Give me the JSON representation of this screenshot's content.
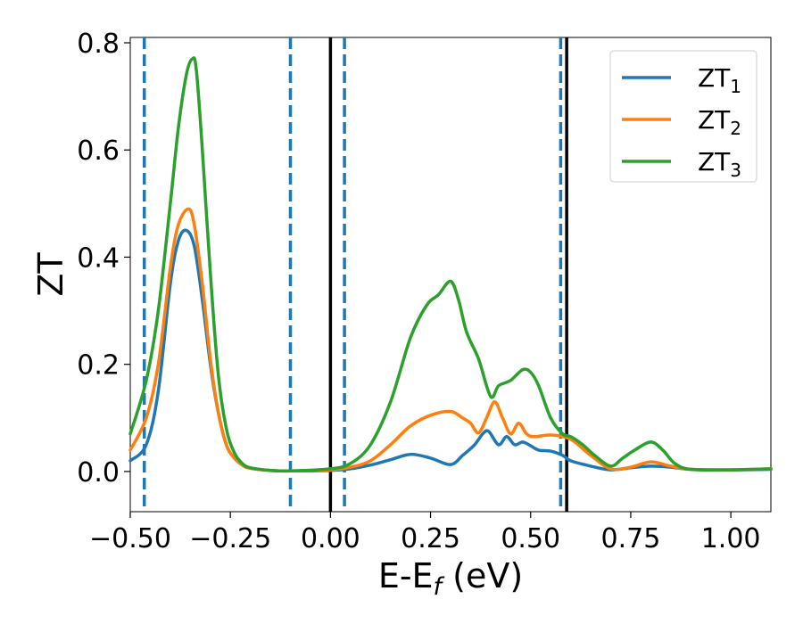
{
  "chart_data": {
    "type": "line",
    "xlabel": "E-E",
    "xlabel_sub": "f",
    "xlabel_unit": " (eV)",
    "ylabel": "ZT",
    "xlim": [
      -0.5,
      1.1
    ],
    "ylim": [
      -0.075,
      0.81
    ],
    "x_ticks": [
      -0.5,
      -0.25,
      0.0,
      0.25,
      0.5,
      0.75,
      1.0
    ],
    "x_tick_labels": [
      "−0.50",
      "−0.25",
      "0.00",
      "0.25",
      "0.50",
      "0.75",
      "1.00"
    ],
    "y_ticks": [
      0.0,
      0.2,
      0.4,
      0.6,
      0.8
    ],
    "y_tick_labels": [
      "0.0",
      "0.2",
      "0.4",
      "0.6",
      "0.8"
    ],
    "grid": false,
    "legend_position": "top-right",
    "solid_vlines": [
      0.0,
      0.59
    ],
    "dashed_vlines": [
      -0.465,
      -0.1,
      0.035,
      0.575
    ],
    "vline_colors": {
      "solid": "#000000",
      "dashed": "#1f77b4"
    },
    "series": [
      {
        "name": "ZT",
        "sub": "1",
        "color": "#1f77b4",
        "x": [
          -0.5,
          -0.46,
          -0.43,
          -0.4,
          -0.38,
          -0.36,
          -0.34,
          -0.32,
          -0.3,
          -0.28,
          -0.26,
          -0.24,
          -0.22,
          -0.2,
          -0.15,
          -0.1,
          0.0,
          0.05,
          0.1,
          0.15,
          0.2,
          0.25,
          0.3,
          0.33,
          0.36,
          0.38,
          0.395,
          0.42,
          0.44,
          0.46,
          0.48,
          0.5,
          0.52,
          0.55,
          0.58,
          0.6,
          0.65,
          0.7,
          0.75,
          0.8,
          0.85,
          0.9,
          1.0,
          1.1
        ],
        "y": [
          0.02,
          0.05,
          0.15,
          0.35,
          0.43,
          0.45,
          0.42,
          0.32,
          0.2,
          0.11,
          0.05,
          0.025,
          0.012,
          0.006,
          0.002,
          0.001,
          0.002,
          0.005,
          0.012,
          0.022,
          0.032,
          0.025,
          0.013,
          0.03,
          0.05,
          0.07,
          0.075,
          0.05,
          0.065,
          0.05,
          0.055,
          0.048,
          0.04,
          0.038,
          0.03,
          0.02,
          0.01,
          0.003,
          0.007,
          0.01,
          0.008,
          0.004,
          0.003,
          0.004
        ]
      },
      {
        "name": "ZT",
        "sub": "2",
        "color": "#ff7f0e",
        "x": [
          -0.5,
          -0.46,
          -0.43,
          -0.4,
          -0.38,
          -0.355,
          -0.34,
          -0.32,
          -0.3,
          -0.28,
          -0.26,
          -0.24,
          -0.22,
          -0.2,
          -0.15,
          -0.1,
          0.0,
          0.05,
          0.1,
          0.15,
          0.2,
          0.25,
          0.3,
          0.33,
          0.35,
          0.37,
          0.39,
          0.41,
          0.43,
          0.45,
          0.47,
          0.49,
          0.51,
          0.55,
          0.6,
          0.65,
          0.7,
          0.75,
          0.8,
          0.85,
          0.9,
          1.0,
          1.1
        ],
        "y": [
          0.04,
          0.1,
          0.2,
          0.38,
          0.46,
          0.49,
          0.46,
          0.35,
          0.21,
          0.11,
          0.05,
          0.025,
          0.012,
          0.006,
          0.002,
          0.001,
          0.003,
          0.008,
          0.02,
          0.05,
          0.085,
          0.105,
          0.112,
          0.1,
          0.09,
          0.072,
          0.1,
          0.13,
          0.1,
          0.07,
          0.09,
          0.07,
          0.065,
          0.068,
          0.06,
          0.03,
          0.005,
          0.008,
          0.018,
          0.01,
          0.004,
          0.003,
          0.005
        ]
      },
      {
        "name": "ZT",
        "sub": "3",
        "color": "#2ca02c",
        "x": [
          -0.5,
          -0.46,
          -0.43,
          -0.4,
          -0.38,
          -0.36,
          -0.345,
          -0.335,
          -0.32,
          -0.3,
          -0.28,
          -0.26,
          -0.24,
          -0.22,
          -0.2,
          -0.15,
          -0.1,
          0.0,
          0.05,
          0.1,
          0.15,
          0.2,
          0.24,
          0.27,
          0.3,
          0.32,
          0.34,
          0.37,
          0.4,
          0.42,
          0.45,
          0.48,
          0.5,
          0.52,
          0.55,
          0.58,
          0.6,
          0.63,
          0.66,
          0.7,
          0.73,
          0.76,
          0.8,
          0.83,
          0.86,
          0.9,
          1.0,
          1.1
        ],
        "y": [
          0.07,
          0.17,
          0.3,
          0.5,
          0.64,
          0.74,
          0.77,
          0.75,
          0.6,
          0.37,
          0.18,
          0.08,
          0.035,
          0.015,
          0.007,
          0.002,
          0.001,
          0.005,
          0.015,
          0.05,
          0.13,
          0.25,
          0.31,
          0.33,
          0.355,
          0.32,
          0.26,
          0.21,
          0.14,
          0.16,
          0.17,
          0.19,
          0.185,
          0.16,
          0.1,
          0.07,
          0.065,
          0.05,
          0.03,
          0.01,
          0.025,
          0.04,
          0.055,
          0.04,
          0.015,
          0.004,
          0.003,
          0.005
        ]
      }
    ]
  }
}
